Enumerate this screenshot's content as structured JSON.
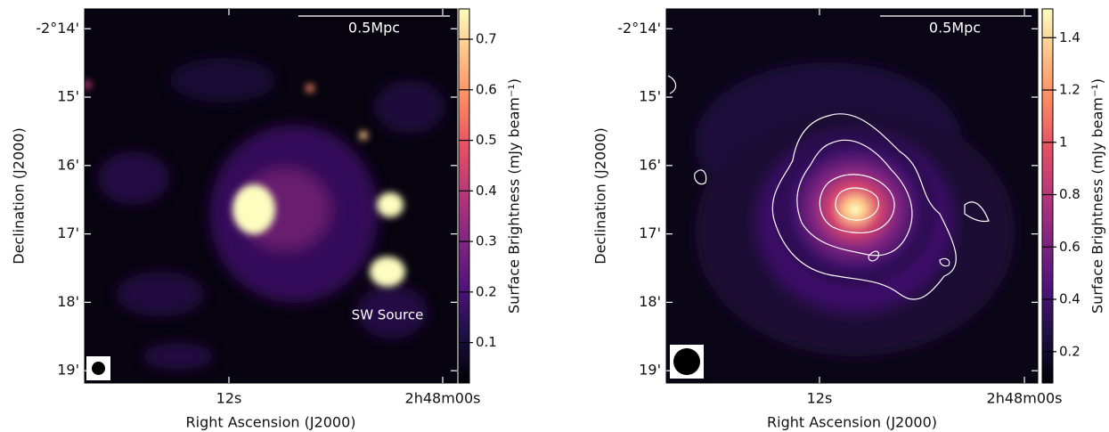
{
  "chart_data": [
    {
      "type": "image",
      "xlabel": "Right Ascension (J2000)",
      "ylabel": "Declination (J2000)",
      "xlim": [
        20.1,
        -0.8
      ],
      "xticks": [
        {
          "value": 12,
          "label": "12s"
        },
        {
          "value": 0,
          "label": "2h48m00s"
        }
      ],
      "ylim": [
        -139.18,
        -133.71
      ],
      "yticks": [
        {
          "value": -134,
          "label": "-2°14'"
        },
        {
          "value": -135,
          "label": "15'"
        },
        {
          "value": -136,
          "label": "16'"
        },
        {
          "value": -137,
          "label": "17'"
        },
        {
          "value": -138,
          "label": "18'"
        },
        {
          "value": -139,
          "label": "19'"
        }
      ],
      "clabel": "Surface Brightness (mJy beam⁻¹)",
      "clim": [
        0.02,
        0.76
      ],
      "cticks": [
        0.1,
        0.2,
        0.3,
        0.4,
        0.5,
        0.6,
        0.7
      ],
      "scalebar": "0.5Mpc",
      "annotation": "SW Source"
    },
    {
      "type": "image",
      "xlabel": "Right Ascension (J2000)",
      "ylabel": "Declination (J2000)",
      "xlim": [
        20.97,
        -0.78
      ],
      "xticks": [
        {
          "value": 12,
          "label": "12s"
        },
        {
          "value": 0,
          "label": "2h48m00s"
        }
      ],
      "ylim": [
        -139.18,
        -133.71
      ],
      "yticks": [
        {
          "value": -134,
          "label": "-2°14'"
        },
        {
          "value": -135,
          "label": "15'"
        },
        {
          "value": -136,
          "label": "16'"
        },
        {
          "value": -137,
          "label": "17'"
        },
        {
          "value": -138,
          "label": "18'"
        },
        {
          "value": -139,
          "label": "19'"
        }
      ],
      "clabel": "Surface Brightness (mJy beam⁻¹)",
      "clim": [
        0.08,
        1.51
      ],
      "cticks": [
        0.2,
        0.4,
        0.6,
        0.8,
        1.0,
        1.2,
        1.4
      ],
      "scalebar": "0.5Mpc"
    }
  ]
}
